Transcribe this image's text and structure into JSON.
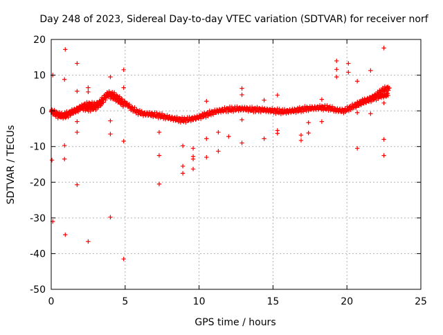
{
  "chart_data": {
    "type": "scatter",
    "title": "Day 248 of 2023, Sidereal Day-to-day VTEC variation (SDTVAR) for receiver norf",
    "xlabel": "GPS time / hours",
    "ylabel": "SDTVAR / TECUs",
    "xlim": [
      0,
      25
    ],
    "ylim": [
      -50,
      20
    ],
    "x_ticks": [
      0,
      5,
      10,
      15,
      20,
      25
    ],
    "y_ticks": [
      -50,
      -40,
      -30,
      -20,
      -10,
      0,
      10,
      20
    ],
    "x_tick_labels": [
      "0",
      "5",
      "10",
      "15",
      "20",
      "25"
    ],
    "y_tick_labels": [
      "-50",
      "-40",
      "-30",
      "-20",
      "-10",
      "0",
      "10",
      "20"
    ],
    "grid": true,
    "marker": "+",
    "colors": {
      "series": "#ff0000",
      "grid": "#b0b0b0",
      "axis": "#000000"
    },
    "series": [
      {
        "name": "SDTVAR",
        "trend_tracks": [
          [
            [
              0,
              0
            ],
            [
              0.3,
              -0.5
            ],
            [
              0.6,
              -1.2
            ],
            [
              1.0,
              -1.5
            ],
            [
              1.4,
              -0.5
            ],
            [
              1.8,
              0.2
            ],
            [
              2.2,
              1.5
            ],
            [
              2.6,
              1.8
            ],
            [
              3.0,
              1.8
            ],
            [
              3.3,
              2.5
            ],
            [
              3.6,
              4.0
            ],
            [
              3.9,
              4.8
            ],
            [
              4.2,
              4.6
            ],
            [
              4.6,
              3.5
            ],
            [
              5.0,
              2.2
            ],
            [
              5.4,
              0.8
            ],
            [
              5.8,
              -0.2
            ],
            [
              6.2,
              -0.8
            ],
            [
              6.8,
              -1.0
            ],
            [
              7.3,
              -1.3
            ],
            [
              7.8,
              -1.8
            ],
            [
              8.3,
              -2.2
            ],
            [
              8.8,
              -2.6
            ],
            [
              9.3,
              -2.4
            ],
            [
              9.8,
              -2.0
            ],
            [
              10.3,
              -1.3
            ],
            [
              10.8,
              -0.6
            ],
            [
              11.3,
              0.0
            ],
            [
              11.8,
              0.3
            ],
            [
              12.3,
              0.5
            ],
            [
              12.8,
              0.6
            ],
            [
              13.3,
              0.5
            ],
            [
              13.8,
              0.3
            ],
            [
              14.3,
              0.3
            ],
            [
              14.8,
              0.1
            ],
            [
              15.3,
              -0.1
            ],
            [
              15.8,
              -0.2
            ],
            [
              16.3,
              0.0
            ],
            [
              16.8,
              0.3
            ],
            [
              17.3,
              0.6
            ],
            [
              17.8,
              0.8
            ],
            [
              18.3,
              0.9
            ],
            [
              18.8,
              0.8
            ],
            [
              19.3,
              0.2
            ],
            [
              19.8,
              0.0
            ],
            [
              20.3,
              1.0
            ],
            [
              20.8,
              2.0
            ],
            [
              21.3,
              2.8
            ],
            [
              21.8,
              3.5
            ],
            [
              22.3,
              4.2
            ],
            [
              22.8,
              4.5
            ]
          ],
          [
            [
              0.0,
              -0.3
            ],
            [
              0.5,
              -1.5
            ],
            [
              1.0,
              -1.0
            ],
            [
              1.5,
              0.0
            ],
            [
              2.0,
              1.0
            ],
            [
              2.5,
              0.5
            ],
            [
              3.0,
              0.8
            ],
            [
              3.4,
              2.0
            ],
            [
              3.8,
              4.5
            ],
            [
              4.1,
              4.0
            ],
            [
              4.5,
              3.0
            ],
            [
              4.9,
              1.5
            ]
          ],
          [
            [
              20.6,
              1.5
            ],
            [
              21.0,
              2.5
            ],
            [
              21.5,
              3.2
            ],
            [
              22.0,
              4.5
            ],
            [
              22.4,
              5.8
            ],
            [
              22.9,
              6.5
            ]
          ]
        ],
        "outliers": [
          [
            0.05,
            -13.8
          ],
          [
            0.1,
            -31.0
          ],
          [
            0.1,
            10.0
          ],
          [
            0.95,
            17.2
          ],
          [
            0.9,
            8.8
          ],
          [
            0.9,
            -9.7
          ],
          [
            0.9,
            -13.5
          ],
          [
            0.95,
            -34.7
          ],
          [
            1.75,
            13.3
          ],
          [
            1.75,
            5.5
          ],
          [
            1.75,
            -3.0
          ],
          [
            1.75,
            -6.0
          ],
          [
            1.75,
            -20.7
          ],
          [
            2.5,
            6.5
          ],
          [
            2.5,
            5.3
          ],
          [
            2.5,
            -36.6
          ],
          [
            4.0,
            9.5
          ],
          [
            4.0,
            -2.8
          ],
          [
            4.0,
            -6.5
          ],
          [
            4.0,
            -29.8
          ],
          [
            4.9,
            11.5
          ],
          [
            4.9,
            6.5
          ],
          [
            4.9,
            -8.5
          ],
          [
            4.9,
            -41.5
          ],
          [
            7.3,
            -6.0
          ],
          [
            7.3,
            -12.5
          ],
          [
            7.3,
            -20.5
          ],
          [
            8.9,
            -9.8
          ],
          [
            8.9,
            -15.5
          ],
          [
            8.9,
            -17.5
          ],
          [
            9.6,
            -10.5
          ],
          [
            9.6,
            -12.8
          ],
          [
            9.6,
            -13.5
          ],
          [
            9.6,
            -16.3
          ],
          [
            10.5,
            2.7
          ],
          [
            10.5,
            -7.8
          ],
          [
            10.5,
            -13.0
          ],
          [
            11.3,
            -6.0
          ],
          [
            11.3,
            -11.3
          ],
          [
            12.0,
            -7.2
          ],
          [
            12.9,
            6.3
          ],
          [
            12.9,
            4.5
          ],
          [
            12.9,
            -2.5
          ],
          [
            12.9,
            -9.0
          ],
          [
            14.4,
            -7.8
          ],
          [
            14.4,
            3.0
          ],
          [
            15.3,
            4.4
          ],
          [
            15.3,
            -5.5
          ],
          [
            15.3,
            -6.3
          ],
          [
            16.9,
            -6.8
          ],
          [
            16.9,
            -8.3
          ],
          [
            17.4,
            -3.3
          ],
          [
            17.4,
            -6.2
          ],
          [
            18.3,
            3.2
          ],
          [
            18.3,
            -3.0
          ],
          [
            19.3,
            14.0
          ],
          [
            19.3,
            11.6
          ],
          [
            19.3,
            9.5
          ],
          [
            20.1,
            13.3
          ],
          [
            20.1,
            10.8
          ],
          [
            20.7,
            8.3
          ],
          [
            20.7,
            -0.5
          ],
          [
            20.7,
            -10.5
          ],
          [
            21.6,
            11.3
          ],
          [
            21.6,
            -0.8
          ],
          [
            22.5,
            17.6
          ],
          [
            22.5,
            2.2
          ],
          [
            22.5,
            -8.0
          ],
          [
            22.5,
            -12.5
          ]
        ]
      }
    ]
  }
}
